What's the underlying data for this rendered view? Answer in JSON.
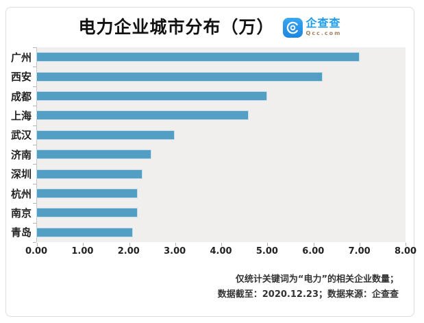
{
  "header": {
    "title": "电力企业城市分布（万）",
    "brand": {
      "name": "企查查",
      "domain": "Qcc.com",
      "icon": "qcc-logo-icon",
      "icon_color": "#2196f0",
      "name_color": "#1b9be9"
    }
  },
  "chart_data": {
    "type": "bar",
    "orientation": "horizontal",
    "title": "电力企业城市分布（万）",
    "categories": [
      "广州",
      "西安",
      "成都",
      "上海",
      "武汉",
      "济南",
      "深圳",
      "杭州",
      "南京",
      "青岛"
    ],
    "values": [
      7.0,
      6.2,
      5.0,
      4.6,
      3.0,
      2.5,
      2.3,
      2.2,
      2.2,
      2.1
    ],
    "xlim": [
      0,
      8
    ],
    "x_ticks": [
      "0.00",
      "1.00",
      "2.00",
      "3.00",
      "4.00",
      "5.00",
      "6.00",
      "7.00",
      "8.00"
    ],
    "xlabel": "",
    "ylabel": "",
    "grid": false,
    "legend": "none",
    "bar_color": "#539fc3",
    "plot_background": "#f0efed"
  },
  "footer": {
    "line1": "仅统计关键词为“电力”的相关企业数量；",
    "line2": "数据截至：2020.12.23；数据来源：企查查"
  }
}
